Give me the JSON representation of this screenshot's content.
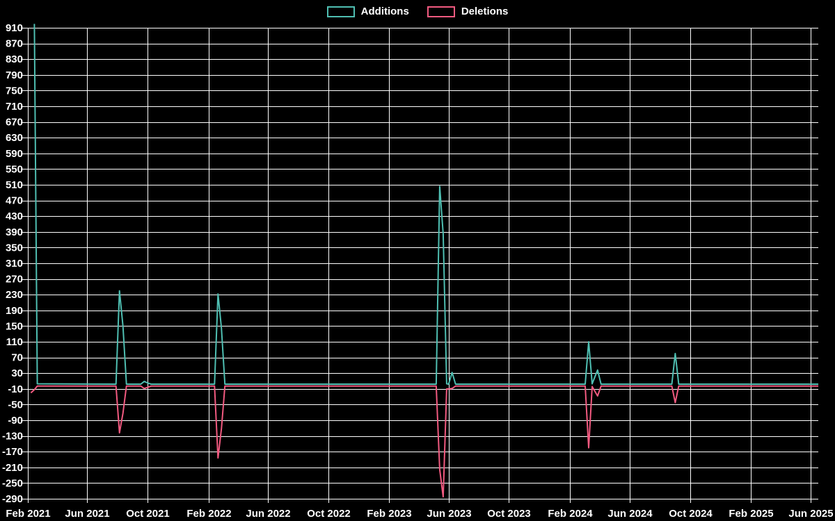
{
  "page": {
    "background": "#000000",
    "text_color": "#ffffff",
    "grid_color": "#ffffff"
  },
  "legend": {
    "items": [
      {
        "label": "Additions",
        "color": "#4fbfb2"
      },
      {
        "label": "Deletions",
        "color": "#f25a80"
      }
    ]
  },
  "chart_data": {
    "type": "line",
    "title": "",
    "xlabel": "",
    "ylabel": "",
    "legend_position": "top-center",
    "grid": true,
    "colors": {
      "background": "#000000",
      "grid": "#ffffff",
      "text": "#ffffff",
      "additions": "#4fbfb2",
      "deletions": "#f25a80"
    },
    "y_axis": {
      "min": -290,
      "max": 910,
      "step": 40,
      "ticks": [
        910,
        870,
        830,
        790,
        750,
        710,
        670,
        630,
        590,
        550,
        510,
        470,
        430,
        390,
        350,
        310,
        270,
        230,
        190,
        150,
        110,
        70,
        30,
        -10,
        -50,
        -90,
        -130,
        -170,
        -210,
        -250,
        -290
      ]
    },
    "x_axis": {
      "domain": [
        "2021-01-29",
        "2025-06-17"
      ],
      "ticks": [
        {
          "label": "Feb 2021",
          "date": "2021-02-01"
        },
        {
          "label": "Jun 2021",
          "date": "2021-06-01"
        },
        {
          "label": "Oct 2021",
          "date": "2021-10-01"
        },
        {
          "label": "Feb 2022",
          "date": "2022-02-01"
        },
        {
          "label": "Jun 2022",
          "date": "2022-06-01"
        },
        {
          "label": "Oct 2022",
          "date": "2022-10-01"
        },
        {
          "label": "Feb 2023",
          "date": "2023-02-01"
        },
        {
          "label": "Jun 2023",
          "date": "2023-06-01"
        },
        {
          "label": "Oct 2023",
          "date": "2023-10-01"
        },
        {
          "label": "Feb 2024",
          "date": "2024-02-01"
        },
        {
          "label": "Jun 2024",
          "date": "2024-06-01"
        },
        {
          "label": "Oct 2024",
          "date": "2024-10-01"
        },
        {
          "label": "Feb 2025",
          "date": "2025-02-01"
        },
        {
          "label": "Jun 2025",
          "date": "2025-06-01"
        }
      ]
    },
    "series": [
      {
        "name": "Additions",
        "color": "#4fbfb2",
        "points": [
          [
            "2021-02-14",
            920
          ],
          [
            "2021-02-20",
            3
          ],
          [
            "2021-07-29",
            2
          ],
          [
            "2021-08-05",
            240
          ],
          [
            "2021-08-12",
            150
          ],
          [
            "2021-08-19",
            2
          ],
          [
            "2021-09-17",
            2
          ],
          [
            "2021-09-24",
            9
          ],
          [
            "2021-10-01",
            5
          ],
          [
            "2021-10-08",
            2
          ],
          [
            "2022-02-13",
            2
          ],
          [
            "2022-02-20",
            232
          ],
          [
            "2022-02-27",
            145
          ],
          [
            "2022-03-06",
            2
          ],
          [
            "2023-05-07",
            2
          ],
          [
            "2023-05-14",
            506
          ],
          [
            "2023-05-21",
            385
          ],
          [
            "2023-05-28",
            3
          ],
          [
            "2023-06-01",
            2
          ],
          [
            "2023-06-08",
            32
          ],
          [
            "2023-06-15",
            2
          ],
          [
            "2024-03-03",
            2
          ],
          [
            "2024-03-10",
            110
          ],
          [
            "2024-03-17",
            3
          ],
          [
            "2024-03-28",
            38
          ],
          [
            "2024-04-04",
            2
          ],
          [
            "2024-08-25",
            2
          ],
          [
            "2024-09-01",
            80
          ],
          [
            "2024-09-08",
            2
          ],
          [
            "2025-06-17",
            2
          ]
        ]
      },
      {
        "name": "Deletions",
        "color": "#f25a80",
        "points": [
          [
            "2021-02-07",
            -20
          ],
          [
            "2021-02-14",
            -12
          ],
          [
            "2021-02-20",
            -3
          ],
          [
            "2021-07-29",
            -3
          ],
          [
            "2021-08-05",
            -122
          ],
          [
            "2021-08-12",
            -72
          ],
          [
            "2021-08-19",
            -3
          ],
          [
            "2021-09-17",
            -3
          ],
          [
            "2021-09-24",
            -9
          ],
          [
            "2021-10-01",
            -6
          ],
          [
            "2021-10-08",
            -3
          ],
          [
            "2022-02-13",
            -3
          ],
          [
            "2022-02-20",
            -186
          ],
          [
            "2022-02-27",
            -112
          ],
          [
            "2022-03-06",
            -3
          ],
          [
            "2023-05-07",
            -3
          ],
          [
            "2023-05-14",
            -215
          ],
          [
            "2023-05-21",
            -285
          ],
          [
            "2023-05-28",
            -10
          ],
          [
            "2023-06-01",
            -10
          ],
          [
            "2023-06-08",
            -9
          ],
          [
            "2023-06-15",
            -3
          ],
          [
            "2024-03-03",
            -3
          ],
          [
            "2024-03-10",
            -160
          ],
          [
            "2024-03-17",
            -4
          ],
          [
            "2024-03-28",
            -28
          ],
          [
            "2024-04-04",
            -3
          ],
          [
            "2024-08-25",
            -3
          ],
          [
            "2024-09-01",
            -45
          ],
          [
            "2024-09-08",
            -3
          ],
          [
            "2025-06-17",
            -3
          ]
        ]
      }
    ]
  }
}
